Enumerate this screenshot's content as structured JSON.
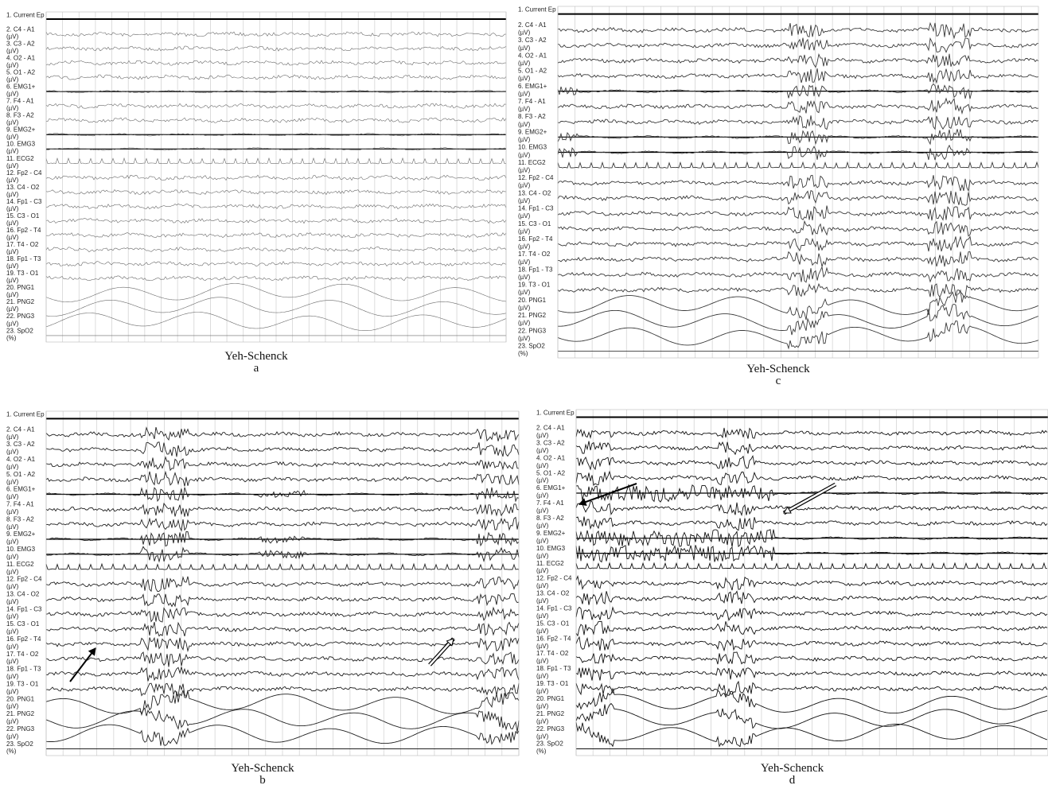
{
  "channels": [
    {
      "label": "1. Current Ep"
    },
    {
      "label": "2. C4 - A1",
      "unit": "(µV)"
    },
    {
      "label": "3. C3 - A2",
      "unit": "(µV)"
    },
    {
      "label": "4. O2 - A1",
      "unit": "(µV)"
    },
    {
      "label": "5. O1 - A2",
      "unit": "(µV)"
    },
    {
      "label": "6. EMG1+",
      "unit": "(µV)"
    },
    {
      "label": "7. F4 - A1",
      "unit": "(µV)"
    },
    {
      "label": "8. F3 - A2",
      "unit": "(µV)"
    },
    {
      "label": "9. EMG2+",
      "unit": "(µV)"
    },
    {
      "label": "10. EMG3",
      "unit": "(µV)"
    },
    {
      "label": "11. ECG2",
      "unit": "(µV)"
    },
    {
      "label": "12. Fp2 - C4",
      "unit": "(µV)"
    },
    {
      "label": "13. C4 - O2",
      "unit": "(µV)"
    },
    {
      "label": "14. Fp1 - C3",
      "unit": "(µV)"
    },
    {
      "label": "15. C3 - O1",
      "unit": "(µV)"
    },
    {
      "label": "16. Fp2 - T4",
      "unit": "(µV)"
    },
    {
      "label": "17. T4 - O2",
      "unit": "(µV)"
    },
    {
      "label": "18. Fp1 - T3",
      "unit": "(µV)"
    },
    {
      "label": "19. T3 - O1",
      "unit": "(µV)"
    },
    {
      "label": "20. PNG1",
      "unit": "(µV)"
    },
    {
      "label": "21. PNG2",
      "unit": "(µV)"
    },
    {
      "label": "22. PNG3",
      "unit": "(µV)"
    },
    {
      "label": "23. SpO2",
      "unit": "(%)"
    }
  ],
  "panels": [
    {
      "caption": "Yeh-Schenck",
      "letter": "a"
    },
    {
      "caption": "Yeh-Schenck",
      "letter": "c"
    },
    {
      "caption": "Yeh-Schenck",
      "letter": "b"
    },
    {
      "caption": "Yeh-Schenck",
      "letter": "d"
    }
  ]
}
